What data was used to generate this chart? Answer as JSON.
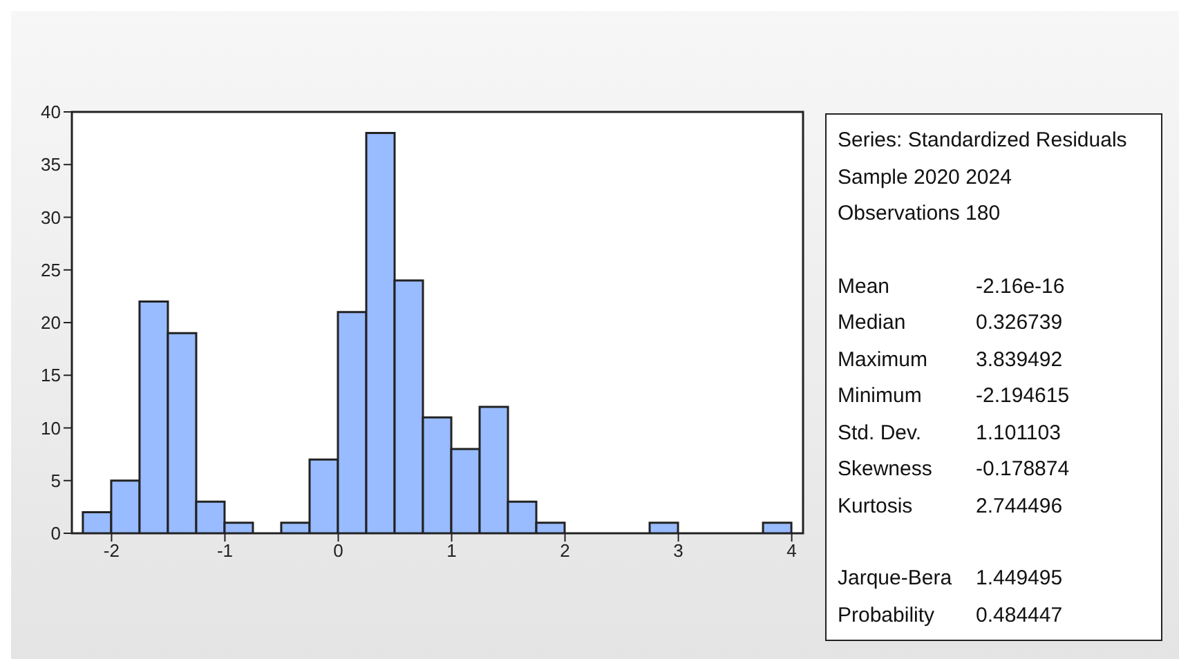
{
  "chart_data": {
    "type": "histogram",
    "bins": [
      -2.25,
      -2,
      -1.75,
      -1.5,
      -1.25,
      -1,
      -0.75,
      -0.5,
      -0.25,
      0,
      0.25,
      0.5,
      0.75,
      1,
      1.25,
      1.5,
      1.75,
      2,
      2.25,
      2.5,
      2.75,
      3,
      3.25,
      3.5,
      3.75,
      4
    ],
    "values": [
      2,
      5,
      22,
      19,
      3,
      1,
      0,
      1,
      7,
      21,
      38,
      24,
      11,
      8,
      12,
      3,
      1,
      0,
      0,
      0,
      1,
      0,
      0,
      0,
      1
    ],
    "color": "#99bbff",
    "xlim": [
      -2.35,
      4.1
    ],
    "xticks": [
      -2,
      -1,
      0,
      1,
      2,
      3,
      4
    ],
    "ylim": [
      0,
      40
    ],
    "yticks": [
      0,
      5,
      10,
      15,
      20,
      25,
      30,
      35,
      40
    ],
    "annotations": [
      "Series: Standardized Residuals",
      "Sample 2020 2024",
      "Observations 180",
      "Mean",
      "-2.16e-16",
      "Median",
      "0.326739",
      "Maximum",
      "3.839492",
      "Minimum",
      "-2.194615",
      "Std. Dev.",
      "1.101103",
      "Skewness",
      "-0.178874",
      "Kurtosis",
      "2.744496",
      "Jarque-Bera",
      "1.449495",
      "Probability",
      "0.484447"
    ]
  }
}
